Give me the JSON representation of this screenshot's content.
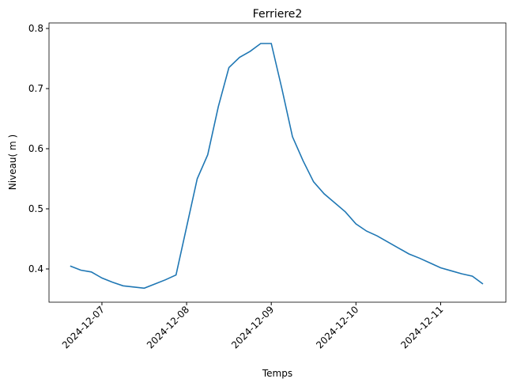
{
  "chart_data": {
    "type": "line",
    "title": "Ferriere2",
    "x_label": "Temps",
    "y_label": "Niveau( m )",
    "x": [
      "2024-12-06T15:00",
      "2024-12-06T18:00",
      "2024-12-06T21:00",
      "2024-12-07T00:00",
      "2024-12-07T03:00",
      "2024-12-07T06:00",
      "2024-12-07T09:00",
      "2024-12-07T12:00",
      "2024-12-07T15:00",
      "2024-12-07T18:00",
      "2024-12-07T21:00",
      "2024-12-08T00:00",
      "2024-12-08T03:00",
      "2024-12-08T06:00",
      "2024-12-08T09:00",
      "2024-12-08T12:00",
      "2024-12-08T15:00",
      "2024-12-08T18:00",
      "2024-12-08T21:00",
      "2024-12-09T00:00",
      "2024-12-09T03:00",
      "2024-12-09T06:00",
      "2024-12-09T09:00",
      "2024-12-09T12:00",
      "2024-12-09T15:00",
      "2024-12-09T18:00",
      "2024-12-09T21:00",
      "2024-12-10T00:00",
      "2024-12-10T03:00",
      "2024-12-10T06:00",
      "2024-12-10T09:00",
      "2024-12-10T12:00",
      "2024-12-10T15:00",
      "2024-12-10T18:00",
      "2024-12-10T21:00",
      "2024-12-11T00:00",
      "2024-12-11T03:00",
      "2024-12-11T06:00",
      "2024-12-11T09:00",
      "2024-12-11T12:00"
    ],
    "values": [
      0.405,
      0.398,
      0.395,
      0.385,
      0.378,
      0.372,
      0.37,
      0.368,
      0.375,
      0.382,
      0.39,
      0.47,
      0.55,
      0.59,
      0.67,
      0.735,
      0.752,
      0.762,
      0.775,
      0.775,
      0.7,
      0.62,
      0.58,
      0.545,
      0.525,
      0.51,
      0.495,
      0.475,
      0.463,
      0.455,
      0.445,
      0.435,
      0.425,
      0.418,
      0.41,
      0.402,
      0.397,
      0.392,
      0.388,
      0.375
    ],
    "color": "#1f77b4",
    "xlim": [
      "2024-12-06T09:00",
      "2024-12-11T18:30"
    ],
    "xticks": [
      "2024-12-07",
      "2024-12-08",
      "2024-12-09",
      "2024-12-10",
      "2024-12-11"
    ],
    "ylim": [
      0.3447,
      0.8092
    ],
    "yticks": [
      0.4,
      0.5,
      0.6,
      0.7,
      0.8
    ]
  }
}
